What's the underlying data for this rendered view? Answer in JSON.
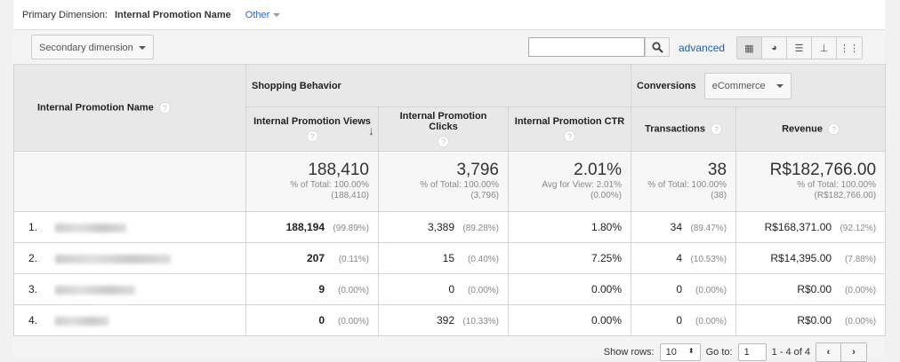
{
  "primary_dimension": {
    "label": "Primary Dimension:",
    "current": "Internal Promotion Name",
    "other": "Other"
  },
  "toolbar": {
    "secondary_dimension": "Secondary dimension",
    "search_value": "",
    "advanced": "advanced"
  },
  "table": {
    "dim_header": "Internal Promotion Name",
    "group_shopping": "Shopping Behavior",
    "group_conversions": "Conversions",
    "conversions_select": "eCommerce",
    "columns": [
      "Internal Promotion Views",
      "Internal Promotion Clicks",
      "Internal Promotion CTR",
      "Transactions",
      "Revenue"
    ],
    "totals": [
      {
        "value": "188,410",
        "line1": "% of Total: 100.00%",
        "line2": "(188,410)"
      },
      {
        "value": "3,796",
        "line1": "% of Total: 100.00%",
        "line2": "(3,796)"
      },
      {
        "value": "2.01%",
        "line1": "Avg for View: 2.01%",
        "line2": "(0.00%)"
      },
      {
        "value": "38",
        "line1": "% of Total: 100.00%",
        "line2": "(38)"
      },
      {
        "value": "R$182,766.00",
        "line1": "% of Total: 100.00%",
        "line2": "(R$182,766.00)"
      }
    ],
    "rows": [
      {
        "idx": "1.",
        "views": "188,194",
        "views_pct": "(99.89%)",
        "clicks": "3,389",
        "clicks_pct": "(89.28%)",
        "ctr": "1.80%",
        "tx": "34",
        "tx_pct": "(89.47%)",
        "rev": "R$168,371.00",
        "rev_pct": "(92.12%)"
      },
      {
        "idx": "2.",
        "views": "207",
        "views_pct": "(0.11%)",
        "clicks": "15",
        "clicks_pct": "(0.40%)",
        "ctr": "7.25%",
        "tx": "4",
        "tx_pct": "(10.53%)",
        "rev": "R$14,395.00",
        "rev_pct": "(7.88%)"
      },
      {
        "idx": "3.",
        "views": "9",
        "views_pct": "(0.00%)",
        "clicks": "0",
        "clicks_pct": "(0.00%)",
        "ctr": "0.00%",
        "tx": "0",
        "tx_pct": "(0.00%)",
        "rev": "R$0.00",
        "rev_pct": "(0.00%)"
      },
      {
        "idx": "4.",
        "views": "0",
        "views_pct": "(0.00%)",
        "clicks": "392",
        "clicks_pct": "(10.33%)",
        "ctr": "0.00%",
        "tx": "0",
        "tx_pct": "(0.00%)",
        "rev": "R$0.00",
        "rev_pct": "(0.00%)"
      }
    ]
  },
  "pagination": {
    "show_rows_label": "Show rows:",
    "show_rows": "10",
    "goto_label": "Go to:",
    "goto": "1",
    "range": "1 - 4 of 4"
  }
}
